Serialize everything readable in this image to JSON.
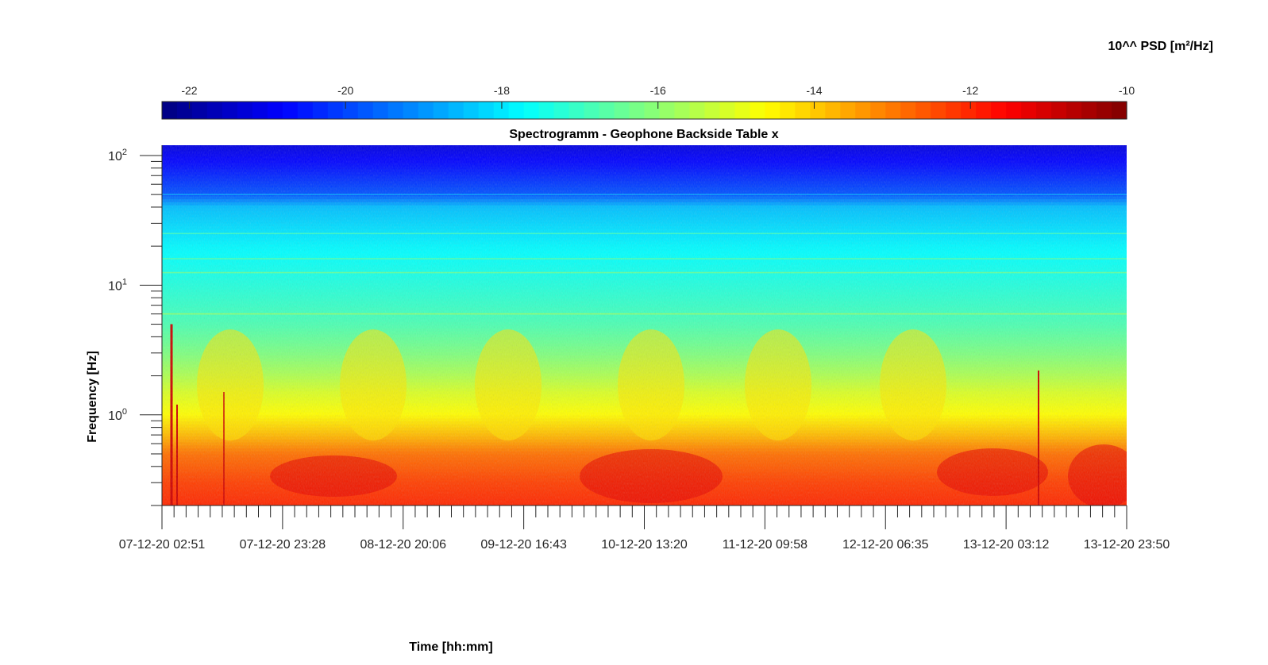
{
  "chart_data": {
    "type": "heatmap",
    "title": "Spectrogramm - Geophone Backside Table x",
    "xlabel": "Time [hh:mm]",
    "ylabel": "Frequency [Hz]",
    "colorbar": {
      "label": "10^^ PSD [m²/Hz]",
      "range": [
        -22.35,
        -10
      ],
      "ticks": [
        -22,
        -20,
        -18,
        -16,
        -14,
        -12,
        -10
      ],
      "tick_labels": [
        "-22",
        "-20",
        "-18",
        "-16",
        "-14",
        "-12",
        "-10"
      ],
      "colormap": "jet",
      "location": "top"
    },
    "x": {
      "tick_labels": [
        "07-12-20 02:51",
        "07-12-20 23:28",
        "08-12-20 20:06",
        "09-12-20 16:43",
        "10-12-20 13:20",
        "11-12-20 09:58",
        "12-12-20 06:35",
        "13-12-20 03:12",
        "13-12-20 23:50"
      ],
      "minor_ticks_per_interval": 10
    },
    "y": {
      "scale": "log",
      "range": [
        0.2,
        120
      ],
      "ticks": [
        1,
        10,
        100
      ],
      "tick_labels": [
        {
          "base": "10",
          "exp": "0"
        },
        {
          "base": "10",
          "exp": "1"
        },
        {
          "base": "10",
          "exp": "2"
        }
      ]
    },
    "psd_profile_by_frequency": {
      "frequency_hz": [
        0.2,
        0.3,
        0.5,
        0.7,
        1.0,
        1.5,
        2.0,
        3.0,
        5.0,
        10.0,
        20.0,
        40.0,
        50.0,
        80.0,
        120.0
      ],
      "log10_psd": [
        -12.0,
        -12.3,
        -12.9,
        -13.8,
        -14.6,
        -15.1,
        -15.6,
        -16.2,
        -16.8,
        -17.3,
        -17.8,
        -18.5,
        -19.8,
        -20.6,
        -21.2
      ]
    },
    "narrowband_lines_hz": [
      6.0,
      12.5,
      16.0,
      25.0,
      50.0
    ],
    "grid": false
  }
}
